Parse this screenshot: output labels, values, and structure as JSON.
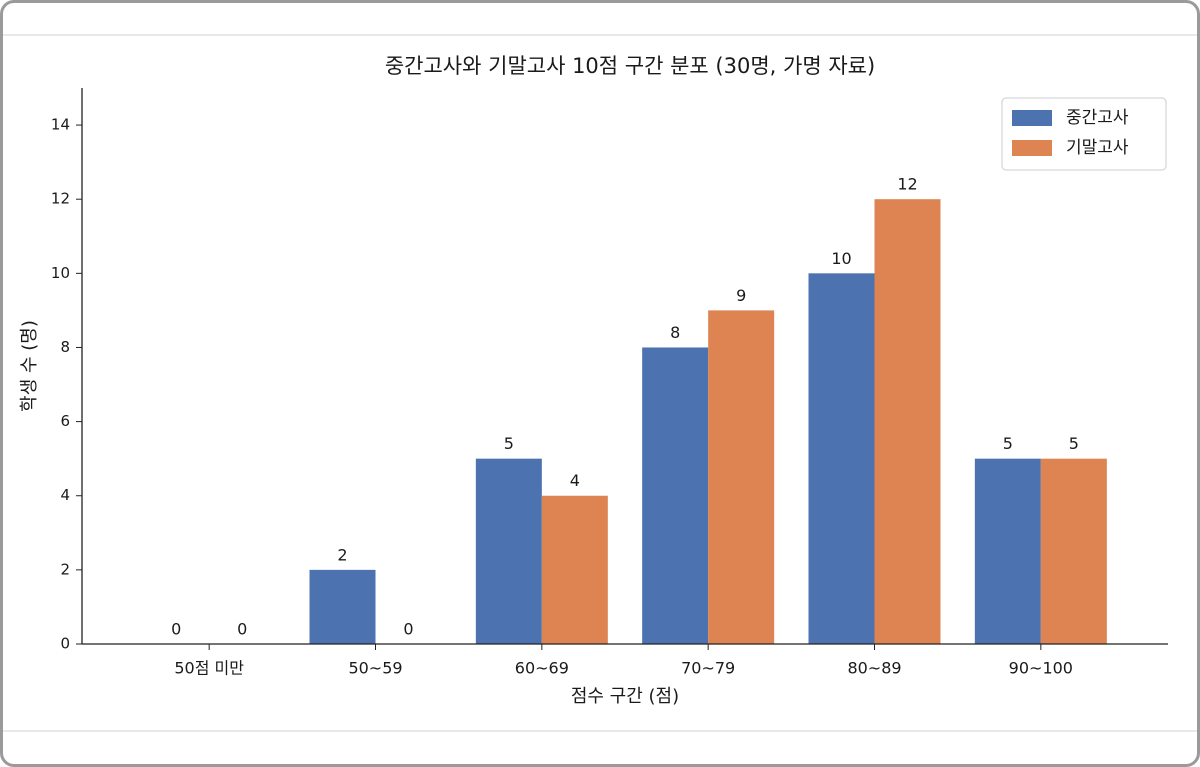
{
  "chart_data": {
    "type": "bar",
    "title": "중간고사와 기말고사 10점 구간 분포 (30명, 가명 자료)",
    "x_label": "점수 구간 (점)",
    "y_label": "학생 수 (명)",
    "categories": [
      "50점 미만",
      "50~59",
      "60~69",
      "70~79",
      "80~89",
      "90~100"
    ],
    "series": [
      {
        "name": "중간고사",
        "color": "#4c72b0",
        "values": [
          0,
          2,
          5,
          8,
          10,
          5
        ]
      },
      {
        "name": "기말고사",
        "color": "#dd8452",
        "values": [
          0,
          0,
          4,
          9,
          12,
          5
        ]
      }
    ],
    "ylim": [
      0,
      15
    ],
    "yticks": [
      0,
      2,
      4,
      6,
      8,
      10,
      12,
      14
    ],
    "legend": "upper-right",
    "data_labels": true
  }
}
